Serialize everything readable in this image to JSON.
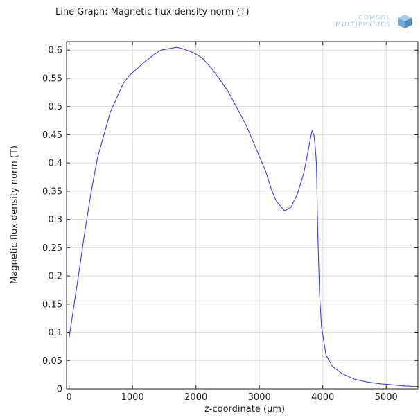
{
  "title": "Line Graph: Magnetic flux density norm (T)",
  "logo": {
    "line1": "COMSOL",
    "line2": "MULTIPHYSICS"
  },
  "chart_data": {
    "type": "line",
    "xlabel": "z-coordinate (µm)",
    "ylabel": "Magnetic flux density norm (T)",
    "xlim": [
      -40,
      5500
    ],
    "ylim": [
      0,
      0.615
    ],
    "xticks": [
      0,
      1000,
      2000,
      3000,
      4000,
      5000
    ],
    "xtick_labels": [
      "0",
      "1000",
      "2000",
      "3000",
      "4000",
      "5000"
    ],
    "yticks": [
      0,
      0.05,
      0.1,
      0.15,
      0.2,
      0.25,
      0.3,
      0.35,
      0.4,
      0.45,
      0.5,
      0.55,
      0.6
    ],
    "ytick_labels": [
      "0",
      "0.05",
      "0.1",
      "0.15",
      "0.2",
      "0.25",
      "0.3",
      "0.35",
      "0.4",
      "0.45",
      "0.5",
      "0.55",
      "0.6"
    ],
    "grid": true,
    "line_color": "#3a3aff",
    "x": [
      0,
      80,
      160,
      250,
      350,
      450,
      550,
      650,
      750,
      850,
      950,
      1050,
      1200,
      1350,
      1450,
      1550,
      1700,
      1800,
      1950,
      2100,
      2250,
      2400,
      2500,
      2650,
      2800,
      2950,
      3100,
      3200,
      3270,
      3300,
      3400,
      3500,
      3600,
      3700,
      3750,
      3800,
      3830,
      3860,
      3880,
      3900,
      3920,
      3950,
      3980,
      4050,
      4150,
      4300,
      4500,
      4700,
      4900,
      5100,
      5300,
      5500
    ],
    "y": [
      0.09,
      0.15,
      0.21,
      0.28,
      0.35,
      0.41,
      0.45,
      0.49,
      0.515,
      0.54,
      0.555,
      0.565,
      0.58,
      0.593,
      0.6,
      0.602,
      0.605,
      0.602,
      0.596,
      0.586,
      0.567,
      0.544,
      0.528,
      0.497,
      0.465,
      0.425,
      0.385,
      0.35,
      0.332,
      0.328,
      0.315,
      0.322,
      0.345,
      0.382,
      0.41,
      0.44,
      0.457,
      0.45,
      0.43,
      0.4,
      0.28,
      0.165,
      0.11,
      0.06,
      0.04,
      0.027,
      0.017,
      0.012,
      0.009,
      0.007,
      0.005,
      0.004
    ]
  }
}
